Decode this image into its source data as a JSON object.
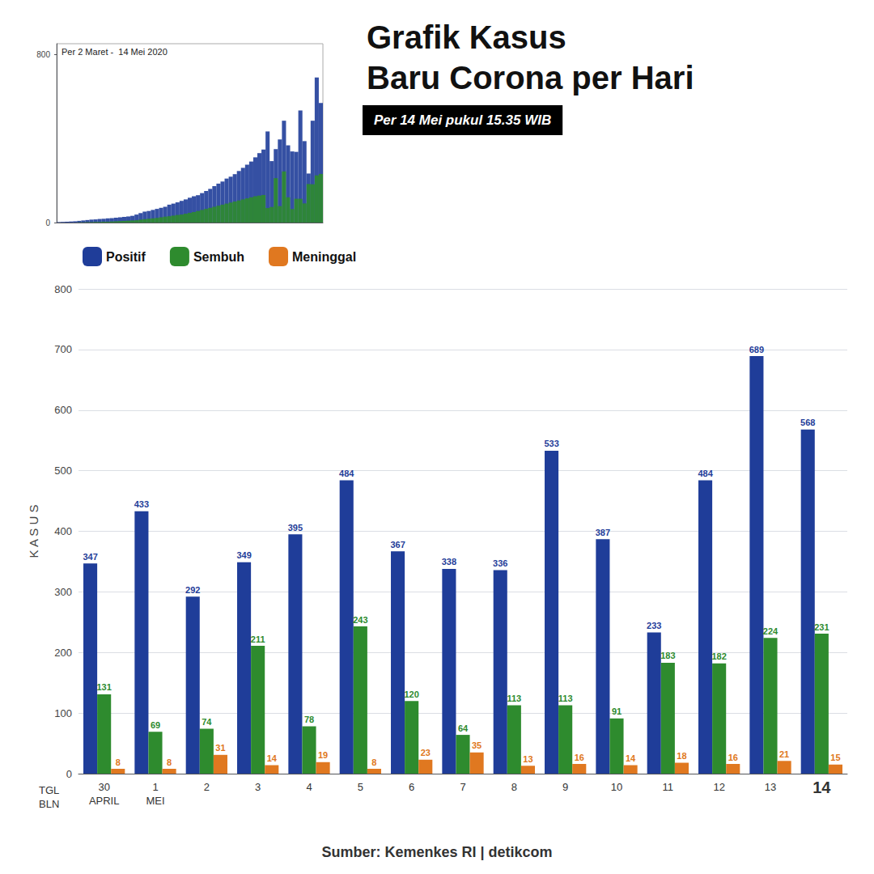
{
  "chart_data": [
    {
      "type": "bar",
      "title": "Grafik Kasus\nBaru Corona per Hari",
      "subtitle": "Per 14 Mei pukul 15.35 WIB",
      "ylabel": "K A S U S",
      "annotations": [
        "TGL\nBLN",
        "Sumber: Kemenkes RI | detikcom"
      ],
      "categories": [
        "30\nAPRIL",
        "1\nMEI",
        "2",
        "3",
        "4",
        "5",
        "6",
        "7",
        "8",
        "9",
        "10",
        "11",
        "12",
        "13",
        "14"
      ],
      "series": [
        {
          "name": "Positif",
          "color": "#1f3d99",
          "values": [
            347,
            433,
            292,
            349,
            395,
            484,
            367,
            338,
            336,
            533,
            387,
            233,
            484,
            689,
            568
          ]
        },
        {
          "name": "Sembuh",
          "color": "#2e8b2e",
          "values": [
            131,
            69,
            74,
            211,
            78,
            243,
            120,
            64,
            113,
            113,
            91,
            183,
            182,
            224,
            231
          ]
        },
        {
          "name": "Meninggal",
          "color": "#e07820",
          "values": [
            8,
            8,
            31,
            14,
            19,
            8,
            23,
            35,
            13,
            16,
            14,
            18,
            16,
            21,
            15
          ]
        }
      ],
      "ylim": [
        0,
        800
      ],
      "yticks": [
        0,
        100,
        200,
        300,
        400,
        500,
        600,
        700,
        800
      ],
      "grid": true,
      "legend": "upper left",
      "data_labels": true
    },
    {
      "type": "bar",
      "title": "Per 2 Maret -  14 Mei 2020",
      "categories": [
        null,
        null,
        null,
        null,
        null,
        null,
        null,
        null,
        null,
        null,
        null,
        null,
        null,
        null,
        null,
        null,
        null,
        null,
        null,
        null,
        null,
        null,
        null,
        null,
        null,
        null,
        null,
        null,
        null,
        null,
        null,
        null,
        null,
        null,
        null,
        null,
        null,
        null,
        null,
        null,
        null,
        null,
        null,
        null,
        null,
        null,
        null,
        null,
        null,
        null,
        null,
        null,
        null,
        null,
        null,
        null,
        null,
        null,
        null,
        null,
        null,
        null,
        null,
        null,
        null
      ],
      "series": [
        {
          "color": "#1f3d99",
          "values": [
            2,
            3,
            4,
            5,
            6,
            8,
            10,
            12,
            14,
            15,
            17,
            18,
            20,
            21,
            23,
            25,
            27,
            29,
            32,
            38,
            45,
            52,
            55,
            60,
            65,
            70,
            75,
            85,
            90,
            96,
            103,
            110,
            118,
            125,
            130,
            140,
            150,
            160,
            173,
            185,
            195,
            209,
            218,
            230,
            245,
            260,
            275,
            290,
            310,
            330,
            347,
            433,
            292,
            349,
            395,
            484,
            367,
            338,
            336,
            533,
            387,
            233,
            484,
            689,
            568
          ]
        },
        {
          "color": "#2e8b2e",
          "values": [
            0,
            0,
            0,
            0,
            0,
            1,
            1,
            2,
            2,
            3,
            3,
            4,
            4,
            5,
            6,
            7,
            8,
            9,
            10,
            11,
            14,
            16,
            18,
            20,
            22,
            25,
            28,
            30,
            33,
            36,
            38,
            42,
            46,
            50,
            55,
            60,
            65,
            70,
            75,
            80,
            85,
            90,
            95,
            100,
            105,
            110,
            115,
            120,
            125,
            128,
            131,
            69,
            74,
            211,
            78,
            243,
            120,
            64,
            113,
            113,
            91,
            183,
            182,
            224,
            231
          ]
        }
      ],
      "ylim": [
        0,
        850
      ],
      "yticks": [
        0,
        800
      ],
      "tick_labels": "y"
    }
  ]
}
